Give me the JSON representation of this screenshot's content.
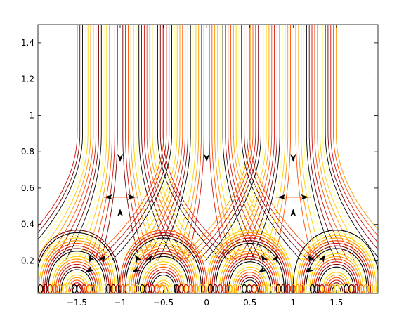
{
  "chart_data": {
    "type": "line",
    "title": "",
    "xlabel": "",
    "ylabel": "",
    "xlim": [
      -1.95,
      1.98
    ],
    "ylim": [
      0.02,
      1.5
    ],
    "x_ticks": [
      {
        "value": -1.5,
        "label": "−1.5"
      },
      {
        "value": -1,
        "label": "−1"
      },
      {
        "value": -0.5,
        "label": "−0.5"
      },
      {
        "value": 0,
        "label": "0"
      },
      {
        "value": 0.5,
        "label": "0.5"
      },
      {
        "value": 1,
        "label": "1"
      },
      {
        "value": 1.5,
        "label": "1.5"
      }
    ],
    "y_ticks": [
      {
        "value": 0.2,
        "label": "0.2"
      },
      {
        "value": 0.4,
        "label": "0.4"
      },
      {
        "value": 0.6,
        "label": "0.6"
      },
      {
        "value": 0.8,
        "label": "0.8"
      },
      {
        "value": 1,
        "label": "1"
      },
      {
        "value": 1.2,
        "label": "1.2"
      },
      {
        "value": 1.4,
        "label": "1.4"
      }
    ],
    "grid": false,
    "legend": "none",
    "colormap": [
      "#000000",
      "#7a0000",
      "#d01010",
      "#ff5000",
      "#ff9a00",
      "#ffd000",
      "#ffff90"
    ],
    "features": {
      "vertical_separatrices_x": [
        -1,
        0,
        1
      ],
      "saddle_points": [
        {
          "x": -1,
          "y": 0.55
        },
        {
          "x": 1,
          "y": 0.55
        }
      ],
      "small_saddles": [
        {
          "x": -1.27,
          "y": 0.16
        },
        {
          "x": -0.73,
          "y": 0.16
        },
        {
          "x": 0.73,
          "y": 0.16
        },
        {
          "x": 1.27,
          "y": 0.16
        }
      ],
      "arch_centers_x": [
        -1.5,
        -0.5,
        0.5,
        1.5
      ]
    }
  }
}
